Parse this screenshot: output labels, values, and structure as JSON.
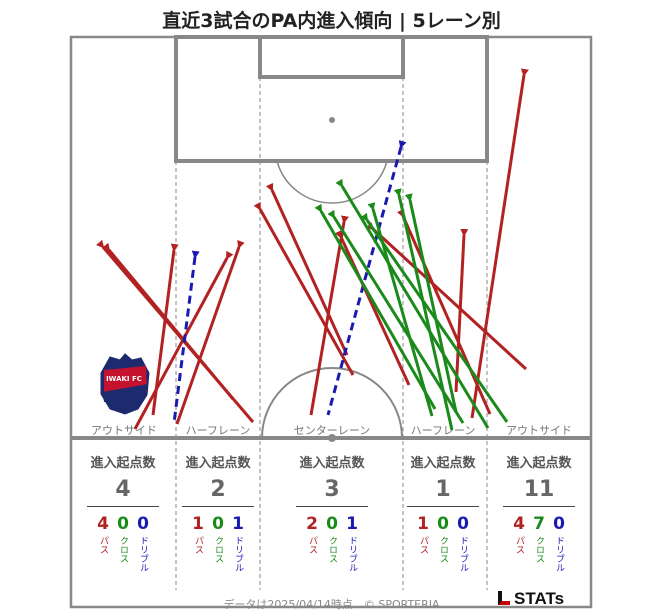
{
  "title": "直近3試合のPA内進入傾向 | 5レーン別",
  "chart_data": {
    "type": "pitch-arrows",
    "lanes": [
      {
        "name": "アウトサイド",
        "header": "進入起点数",
        "total": "4",
        "pass": "4",
        "cross": "0",
        "dribble": "0"
      },
      {
        "name": "ハーフレーン",
        "header": "進入起点数",
        "total": "2",
        "pass": "1",
        "cross": "0",
        "dribble": "1"
      },
      {
        "name": "センターレーン",
        "header": "進入起点数",
        "total": "3",
        "pass": "2",
        "cross": "0",
        "dribble": "1"
      },
      {
        "name": "ハーフレーン",
        "header": "進入起点数",
        "total": "1",
        "pass": "1",
        "cross": "0",
        "dribble": "0"
      },
      {
        "name": "アウトサイド",
        "header": "進入起点数",
        "total": "11",
        "pass": "4",
        "cross": "7",
        "dribble": "0"
      }
    ],
    "type_labels": {
      "pass": "パス",
      "cross": "クロス",
      "dribble": "ドリブル"
    },
    "colors": {
      "pass": "#b22222",
      "cross": "#1a8a1a",
      "dribble": "#1a1ab0"
    },
    "arrows": [
      {
        "type": "pass",
        "from": [
          32,
          210
        ],
        "to": [
          182,
          385
        ]
      },
      {
        "type": "pass",
        "from": [
          38,
          213
        ],
        "to": [
          162,
          362
        ]
      },
      {
        "type": "pass",
        "from": [
          103,
          213
        ],
        "to": [
          82,
          378
        ]
      },
      {
        "type": "pass",
        "from": [
          168,
          210
        ],
        "to": [
          106,
          387
        ]
      },
      {
        "type": "pass",
        "from": [
          156,
          221
        ],
        "to": [
          64,
          392
        ]
      },
      {
        "type": "dribble",
        "from": [
          124,
          220
        ],
        "to": [
          103,
          386
        ]
      },
      {
        "type": "pass",
        "from": [
          273,
          185
        ],
        "to": [
          240,
          378
        ]
      },
      {
        "type": "pass",
        "from": [
          189,
          172
        ],
        "to": [
          282,
          338
        ]
      },
      {
        "type": "pass",
        "from": [
          201,
          153
        ],
        "to": [
          276,
          318
        ]
      },
      {
        "type": "dribble",
        "from": [
          330,
          110
        ],
        "to": [
          257,
          378
        ]
      },
      {
        "type": "pass",
        "from": [
          270,
          200
        ],
        "to": [
          338,
          348
        ]
      },
      {
        "type": "pass",
        "from": [
          302,
          192
        ],
        "to": [
          455,
          332
        ]
      },
      {
        "type": "pass",
        "from": [
          332,
          179
        ],
        "to": [
          419,
          377
        ]
      },
      {
        "type": "pass",
        "from": [
          393,
          198
        ],
        "to": [
          385,
          355
        ]
      },
      {
        "type": "pass",
        "from": [
          453,
          38
        ],
        "to": [
          401,
          381
        ]
      },
      {
        "type": "cross",
        "from": [
          250,
          174
        ],
        "to": [
          364,
          372
        ]
      },
      {
        "type": "cross",
        "from": [
          302,
          172
        ],
        "to": [
          361,
          379
        ]
      },
      {
        "type": "cross",
        "from": [
          328,
          158
        ],
        "to": [
          381,
          393
        ]
      },
      {
        "type": "cross",
        "from": [
          339,
          163
        ],
        "to": [
          385,
          375
        ]
      },
      {
        "type": "cross",
        "from": [
          296,
          183
        ],
        "to": [
          436,
          385
        ]
      },
      {
        "type": "cross",
        "from": [
          271,
          149
        ],
        "to": [
          417,
          391
        ]
      },
      {
        "type": "cross",
        "from": [
          263,
          180
        ],
        "to": [
          392,
          386
        ]
      }
    ]
  },
  "footer": {
    "text": "データは2025/04/14時点　© SPORTERIA",
    "logo": "STATs"
  },
  "badge_text": "IWAKI FC"
}
